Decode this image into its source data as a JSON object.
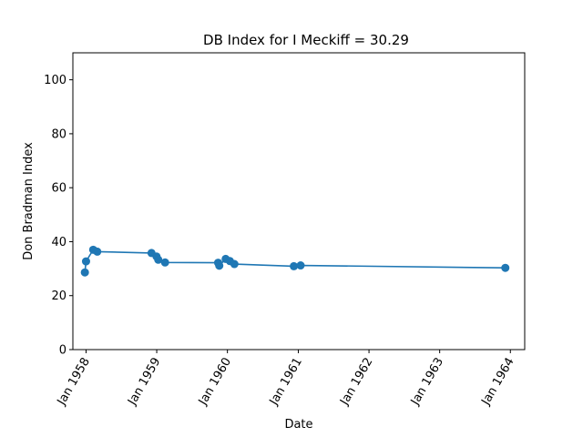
{
  "chart_data": {
    "type": "line",
    "title": "DB Index for I Meckiff = 30.29",
    "xlabel": "Date",
    "ylabel": "Don Bradman Index",
    "ylim": [
      0,
      110
    ],
    "xlim": [
      "1957-10-25",
      "1964-03-15"
    ],
    "grid": false,
    "legend": "none",
    "line_color": "#1f77b4",
    "x_ticks": [
      {
        "date": "1958-01-01",
        "label": "Jan 1958"
      },
      {
        "date": "1959-01-01",
        "label": "Jan 1959"
      },
      {
        "date": "1960-01-01",
        "label": "Jan 1960"
      },
      {
        "date": "1961-01-01",
        "label": "Jan 1961"
      },
      {
        "date": "1962-01-01",
        "label": "Jan 1962"
      },
      {
        "date": "1963-01-01",
        "label": "Jan 1963"
      },
      {
        "date": "1964-01-01",
        "label": "Jan 1964"
      }
    ],
    "y_ticks": [
      0,
      20,
      40,
      60,
      80,
      100
    ],
    "points": [
      {
        "x": "1957-12-26",
        "y": 28.6
      },
      {
        "x": "1958-01-01",
        "y": 32.7
      },
      {
        "x": "1958-02-07",
        "y": 37.0
      },
      {
        "x": "1958-02-28",
        "y": 36.3
      },
      {
        "x": "1958-12-05",
        "y": 35.8
      },
      {
        "x": "1958-12-31",
        "y": 34.5
      },
      {
        "x": "1959-01-09",
        "y": 33.3
      },
      {
        "x": "1959-02-13",
        "y": 32.3
      },
      {
        "x": "1959-11-14",
        "y": 32.2
      },
      {
        "x": "1959-11-20",
        "y": 31.1
      },
      {
        "x": "1959-12-23",
        "y": 33.6
      },
      {
        "x": "1960-01-14",
        "y": 32.8
      },
      {
        "x": "1960-02-06",
        "y": 31.7
      },
      {
        "x": "1960-12-09",
        "y": 30.9
      },
      {
        "x": "1961-01-13",
        "y": 31.2
      },
      {
        "x": "1963-12-06",
        "y": 30.3
      }
    ]
  }
}
